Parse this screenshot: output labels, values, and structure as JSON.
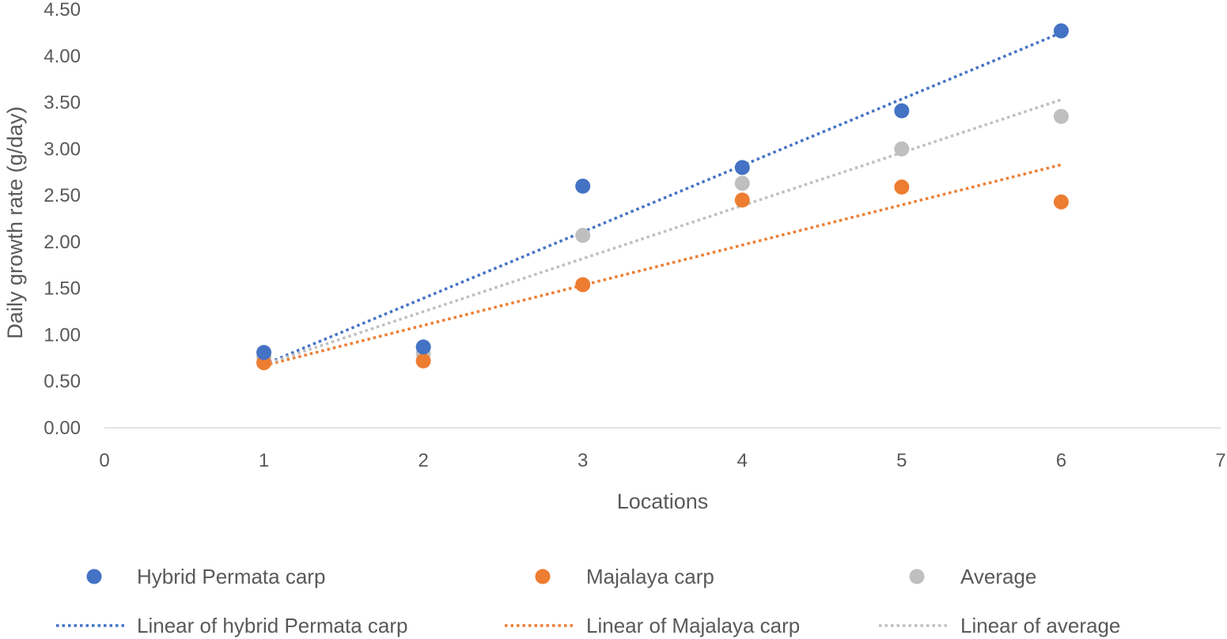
{
  "chart_data": {
    "type": "scatter",
    "title": "",
    "xlabel": "Locations",
    "ylabel": "Daily growth rate (g/day)",
    "xlim": [
      0,
      7
    ],
    "ylim": [
      0,
      4.5
    ],
    "x_ticks": [
      "0",
      "1",
      "2",
      "3",
      "4",
      "5",
      "6",
      "7"
    ],
    "y_ticks": [
      "0.00",
      "0.50",
      "1.00",
      "1.50",
      "2.00",
      "2.50",
      "3.00",
      "3.50",
      "4.00",
      "4.50"
    ],
    "grid": false,
    "legend_position": "bottom",
    "x": [
      1,
      2,
      3,
      4,
      5,
      6
    ],
    "series": [
      {
        "name": "Hybrid Permata carp",
        "color": "#4472C4",
        "values": [
          0.81,
          0.87,
          2.6,
          2.8,
          3.41,
          4.27
        ]
      },
      {
        "name": "Majalaya carp",
        "color": "#ED7D31",
        "values": [
          0.7,
          0.72,
          1.54,
          2.45,
          2.59,
          2.43
        ]
      },
      {
        "name": "Average",
        "color": "#BFBFBF",
        "values": [
          0.76,
          0.8,
          2.07,
          2.63,
          3.0,
          3.35
        ]
      }
    ],
    "trendlines": [
      {
        "name": "Linear of hybrid Permata carp",
        "color": "#4472C4",
        "x": [
          1,
          6
        ],
        "y": [
          0.68,
          4.25
        ]
      },
      {
        "name": "Linear of Majalaya carp",
        "color": "#ED7D31",
        "x": [
          1,
          6
        ],
        "y": [
          0.67,
          2.83
        ]
      },
      {
        "name": "Linear of average",
        "color": "#BFBFBF",
        "x": [
          1,
          6
        ],
        "y": [
          0.68,
          3.53
        ]
      }
    ]
  }
}
